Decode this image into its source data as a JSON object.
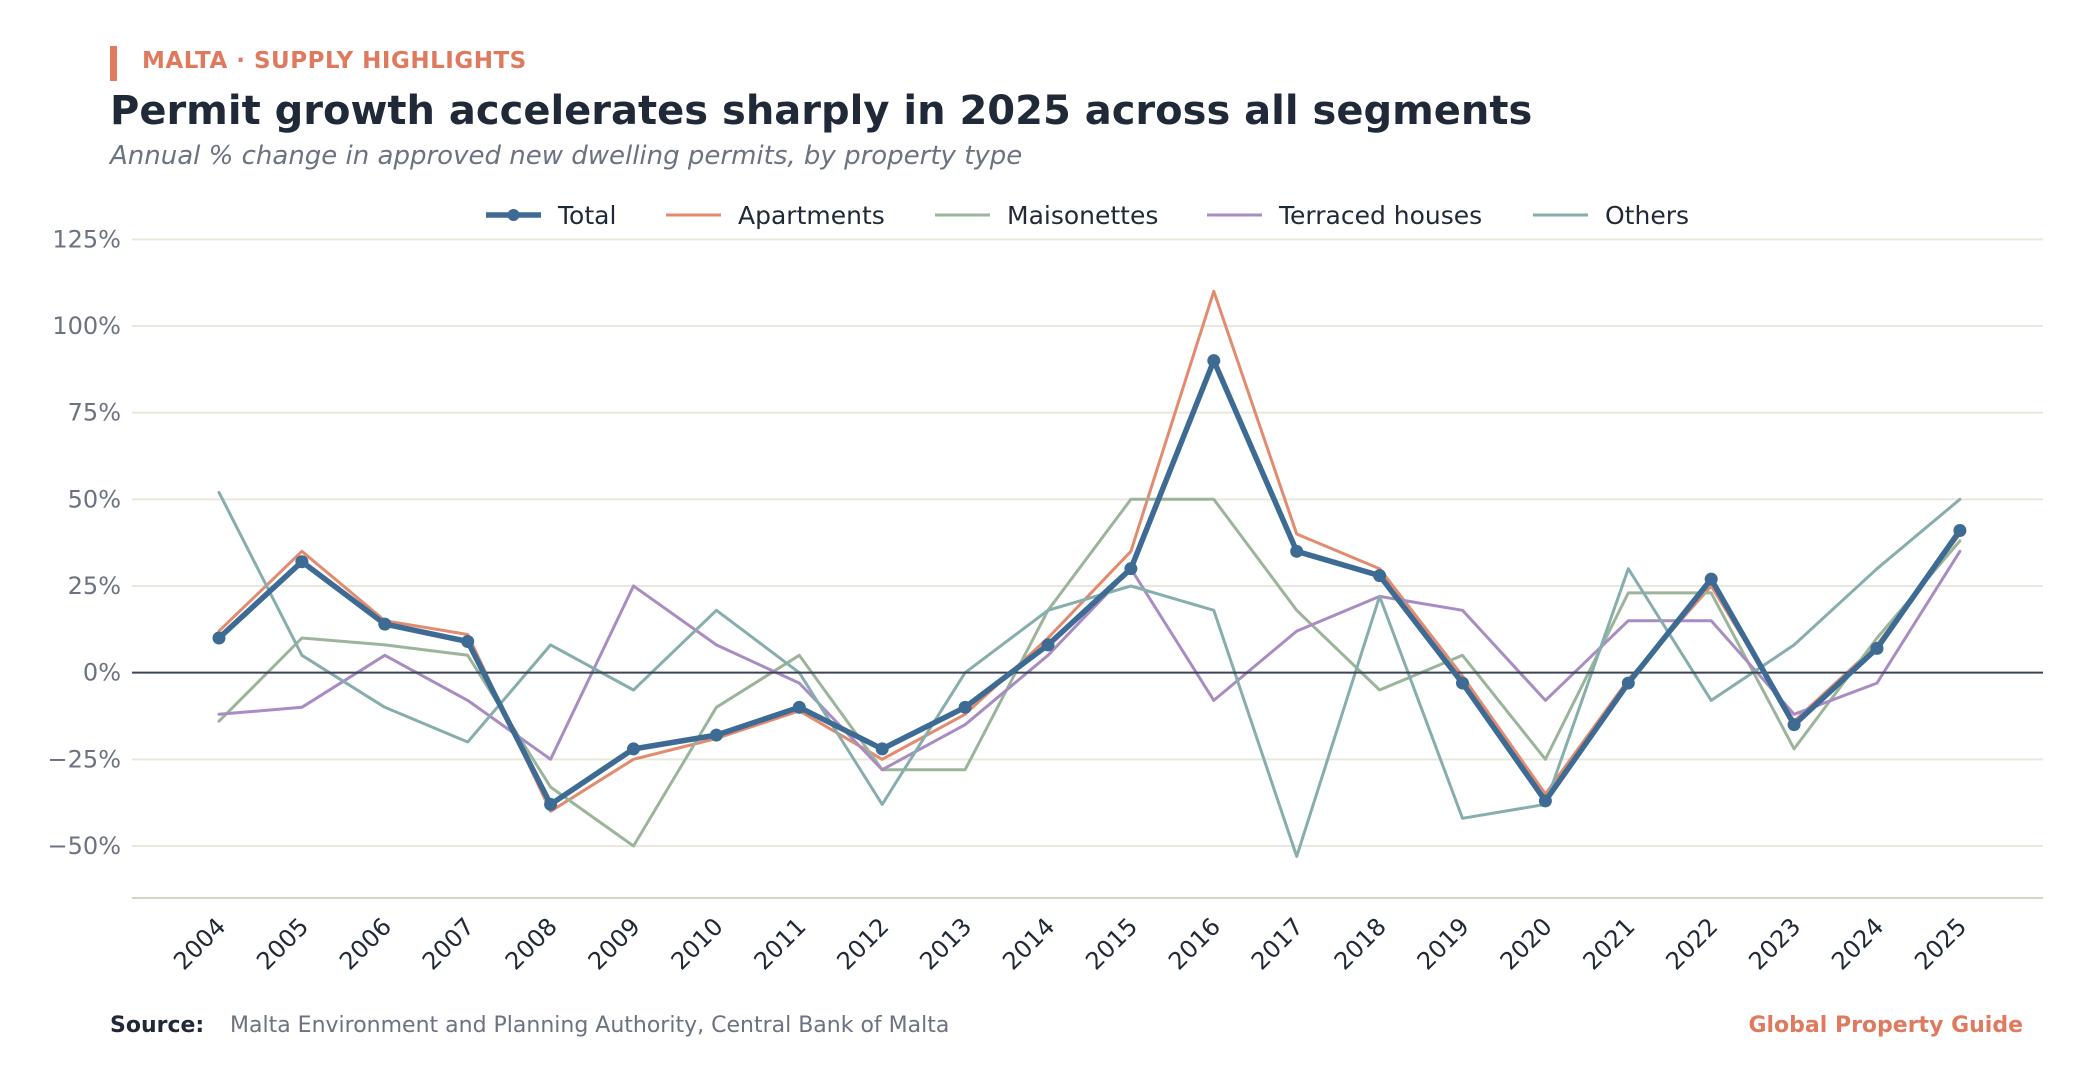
{
  "header": {
    "kicker": "MALTA · SUPPLY HIGHLIGHTS",
    "title": "Permit growth accelerates sharply in 2025 across all segments",
    "subtitle": "Annual % change in approved new dwelling permits, by property type"
  },
  "footer": {
    "source_label": "Source:",
    "source_text": "Malta Environment and Planning Authority, Central Bank of Malta",
    "brand": "Global Property Guide"
  },
  "chart_data": {
    "type": "line",
    "x": [
      "2004",
      "2005",
      "2006",
      "2007",
      "2008",
      "2009",
      "2010",
      "2011",
      "2012",
      "2013",
      "2014",
      "2015",
      "2016",
      "2017",
      "2018",
      "2019",
      "2020",
      "2021",
      "2022",
      "2023",
      "2024",
      "2025"
    ],
    "ylim": [
      -65,
      130
    ],
    "yticks": [
      -50,
      -25,
      0,
      25,
      50,
      75,
      100,
      125
    ],
    "ytick_labels": [
      "−50%",
      "−25%",
      "0%",
      "25%",
      "50%",
      "75%",
      "100%",
      "125%"
    ],
    "grid": true,
    "legend_position": "top",
    "series": [
      {
        "name": "Total",
        "color": "#3d6b94",
        "emphasis": true,
        "values": [
          10,
          32,
          14,
          9,
          -38,
          -22,
          -18,
          -10,
          -22,
          -10,
          8,
          30,
          90,
          35,
          28,
          -3,
          -37,
          -3,
          27,
          -15,
          7,
          41
        ]
      },
      {
        "name": "Apartments",
        "color": "#e38b6e",
        "emphasis": false,
        "values": [
          12,
          35,
          15,
          11,
          -40,
          -25,
          -19,
          -11,
          -25,
          -12,
          10,
          35,
          110,
          40,
          30,
          -1,
          -35,
          -2,
          25,
          -14,
          8,
          40
        ]
      },
      {
        "name": "Maisonettes",
        "color": "#9bb59a",
        "emphasis": false,
        "values": [
          -14,
          10,
          8,
          5,
          -33,
          -50,
          -10,
          5,
          -28,
          -28,
          18,
          50,
          50,
          18,
          -5,
          5,
          -25,
          23,
          23,
          -22,
          10,
          38
        ]
      },
      {
        "name": "Terraced houses",
        "color": "#a98cc2",
        "emphasis": false,
        "values": [
          -12,
          -10,
          5,
          -8,
          -25,
          25,
          8,
          -3,
          -28,
          -15,
          5,
          30,
          -8,
          12,
          22,
          18,
          -8,
          15,
          15,
          -12,
          -3,
          35
        ]
      },
      {
        "name": "Others",
        "color": "#86aead",
        "emphasis": false,
        "values": [
          52,
          5,
          -10,
          -20,
          8,
          -5,
          18,
          0,
          -38,
          0,
          18,
          25,
          18,
          -53,
          22,
          -42,
          -38,
          30,
          -8,
          8,
          30,
          50
        ]
      }
    ]
  }
}
